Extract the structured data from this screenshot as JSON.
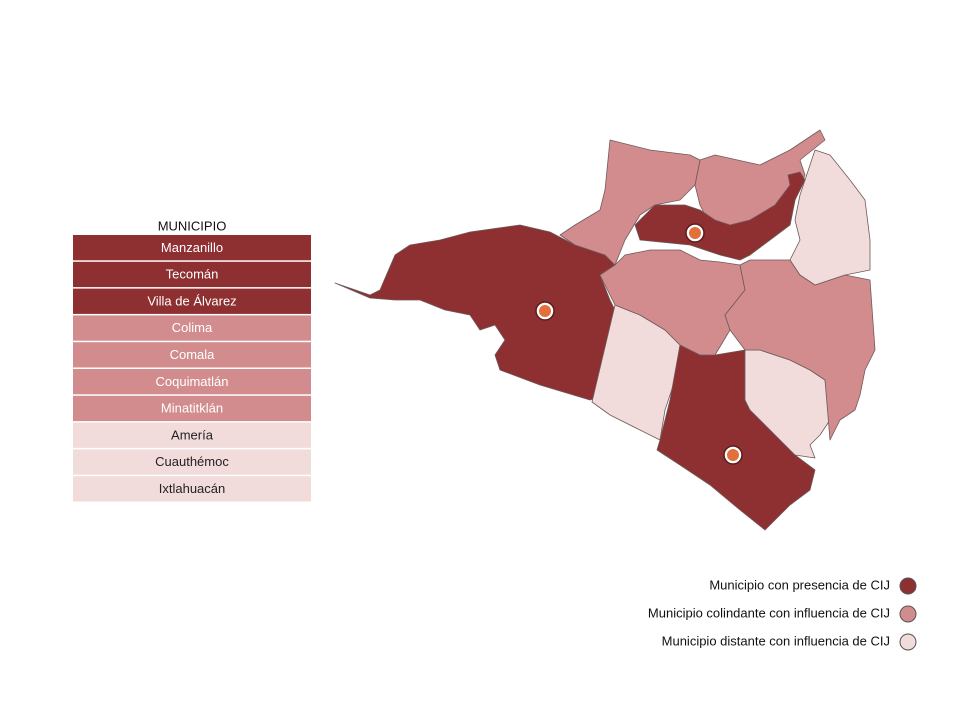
{
  "table": {
    "header": "MUNICIPIO",
    "rows": [
      {
        "name": "Manzanillo",
        "color": "#8e2f31"
      },
      {
        "name": "Tecomán",
        "color": "#8e2f31"
      },
      {
        "name": "Villa de Álvarez",
        "color": "#8e2f31"
      },
      {
        "name": "Colima",
        "color": "#d38c8e"
      },
      {
        "name": "Comala",
        "color": "#d38c8e"
      },
      {
        "name": "Coquimatlán",
        "color": "#d38c8e"
      },
      {
        "name": "Minatitklán",
        "color": "#d38c8e"
      },
      {
        "name": "Amería",
        "color": "#f2dcdb"
      },
      {
        "name": "Cuauthémoc",
        "color": "#f2dcdb"
      },
      {
        "name": "Ixtlahuacán",
        "color": "#f2dcdb"
      }
    ]
  },
  "legend": {
    "items": [
      {
        "label": "Municipio con presencia de CIJ",
        "color": "#8e2f31"
      },
      {
        "label": "Municipio colindante con influencia de CIJ",
        "color": "#d38c8e"
      },
      {
        "label": "Municipio distante con influencia de CIJ",
        "color": "#f2dcdb"
      }
    ]
  }
}
